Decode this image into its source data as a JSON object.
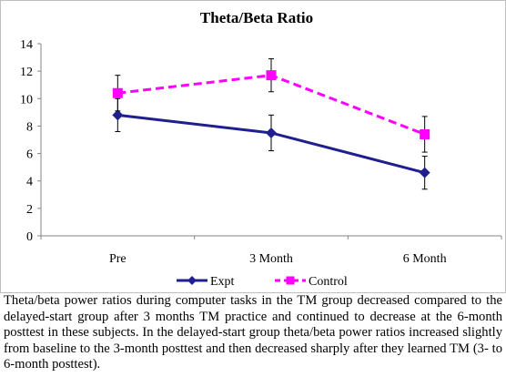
{
  "chart_data": {
    "type": "line",
    "title": "Theta/Beta Ratio",
    "categories": [
      "Pre",
      "3 Month",
      "6 Month"
    ],
    "ylim": [
      0,
      14
    ],
    "yticks": [
      0,
      2,
      4,
      6,
      8,
      10,
      12,
      14
    ],
    "grid": false,
    "legend_position": "bottom",
    "series": [
      {
        "name": "Expt",
        "values": [
          8.8,
          7.5,
          4.6
        ],
        "error": [
          1.2,
          1.3,
          1.2
        ],
        "color": "#1f1f8f",
        "line_style": "solid",
        "marker": "diamond"
      },
      {
        "name": "Control",
        "values": [
          10.4,
          11.7,
          7.4
        ],
        "error": [
          1.3,
          1.2,
          1.3
        ],
        "color": "#ff00ff",
        "line_style": "dashed",
        "marker": "square"
      }
    ]
  },
  "caption": "Theta/beta power ratios during computer tasks in the TM group decreased compared to the delayed-start group after 3 months TM practice and continued to decrease at the 6-month posttest in these subjects. In the delayed-start group theta/beta power ratios increased slightly from baseline to the 3-month posttest and then decreased sharply after they learned TM (3- to 6-month posttest)."
}
